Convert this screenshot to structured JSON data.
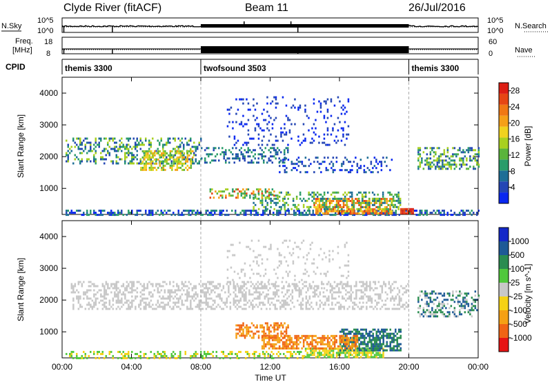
{
  "header": {
    "station": "Clyde River (fitACF)",
    "beam": "Beam 11",
    "date": "26/Jul/2016"
  },
  "nsky_panel": {
    "label": "N.Sky",
    "right_label": "N.Search",
    "left_ticks": [
      "10^5",
      "10^0"
    ],
    "right_ticks": [
      "10^5",
      "10^0"
    ]
  },
  "freq_panel": {
    "label_line1": "Freq.",
    "label_line2": "[MHz]",
    "right_label": "Nave",
    "left_ticks": [
      "18",
      "8"
    ],
    "right_ticks": [
      "60",
      "0"
    ]
  },
  "cpid": {
    "label": "CPID",
    "segments": [
      {
        "name": "themis 3300",
        "start_hour": 0,
        "end_hour": 8
      },
      {
        "name": "twofsound 3503",
        "start_hour": 8,
        "end_hour": 20
      },
      {
        "name": "themis 3300",
        "start_hour": 20,
        "end_hour": 24
      }
    ]
  },
  "colors": {
    "power": [
      "#0a28f0",
      "#2446b4",
      "#1e6e96",
      "#2a9c6a",
      "#5ab43c",
      "#a8d020",
      "#f0d21e",
      "#f5a018",
      "#f07814",
      "#e64614",
      "#dc1e14"
    ],
    "velocity": [
      "#1428c8",
      "#1e5a96",
      "#2a8c50",
      "#50c83c",
      "#c8c8c8",
      "#f5d214",
      "#f5a014",
      "#f06414",
      "#e61414"
    ]
  },
  "chart_data": [
    {
      "type": "heatmap",
      "name": "power",
      "ylabel": "Slant Range [km]",
      "x_range_hours": [
        0,
        24
      ],
      "ylim": [
        180,
        4500
      ],
      "yticks": [
        1000,
        2000,
        3000,
        4000
      ],
      "colorbar_label": "Power [dB]",
      "colorbar_ticks": [
        "4",
        "8",
        "12",
        "16",
        "20",
        "24",
        "28"
      ],
      "colorbar_range": [
        0,
        30
      ]
    },
    {
      "type": "heatmap",
      "name": "velocity",
      "ylabel": "Slant Range [km]",
      "x_range_hours": [
        0,
        24
      ],
      "ylim": [
        180,
        4500
      ],
      "yticks": [
        1000,
        2000,
        3000,
        4000
      ],
      "colorbar_label": "Velocity [m s^-1]",
      "colorbar_ticks": [
        "1000",
        "500",
        "100",
        "25",
        "-25",
        "-100",
        "-500",
        "-1000"
      ]
    }
  ],
  "xaxis": {
    "label": "Time UT",
    "ticks": [
      {
        "hour": 0,
        "label": "00:00"
      },
      {
        "hour": 4,
        "label": "04:00"
      },
      {
        "hour": 8,
        "label": "08:00"
      },
      {
        "hour": 12,
        "label": "12:00"
      },
      {
        "hour": 16,
        "label": "16:00"
      },
      {
        "hour": 20,
        "label": "20:00"
      },
      {
        "hour": 24,
        "label": "00:00"
      }
    ],
    "dashed_lines_hours": [
      8,
      20
    ]
  },
  "scatter_regions": {
    "power": [
      {
        "t": [
          0.2,
          24
        ],
        "r": [
          180,
          330
        ],
        "p": 0.55,
        "c": [
          0,
          1,
          2,
          3
        ]
      },
      {
        "t": [
          14.5,
          19
        ],
        "r": [
          200,
          700
        ],
        "p": 0.7,
        "c": [
          6,
          7,
          8,
          9
        ]
      },
      {
        "t": [
          19.5,
          20.2
        ],
        "r": [
          200,
          380
        ],
        "p": 0.9,
        "c": [
          9,
          10
        ]
      },
      {
        "t": [
          11,
          19.5
        ],
        "r": [
          350,
          900
        ],
        "p": 0.35,
        "c": [
          2,
          3,
          4,
          5
        ]
      },
      {
        "t": [
          8.5,
          12.5
        ],
        "r": [
          700,
          1000
        ],
        "p": 0.4,
        "c": [
          3,
          4,
          5,
          7,
          9
        ]
      },
      {
        "t": [
          0.2,
          8
        ],
        "r": [
          1800,
          2600
        ],
        "p": 0.35,
        "c": [
          1,
          2,
          3,
          5
        ]
      },
      {
        "t": [
          4.5,
          7.5
        ],
        "r": [
          1600,
          2200
        ],
        "p": 0.55,
        "c": [
          4,
          5,
          6,
          7
        ]
      },
      {
        "t": [
          8,
          13
        ],
        "r": [
          1800,
          2300
        ],
        "p": 0.35,
        "c": [
          1,
          2,
          3
        ]
      },
      {
        "t": [
          12.5,
          19
        ],
        "r": [
          1500,
          2000
        ],
        "p": 0.25,
        "c": [
          0,
          1,
          2
        ]
      },
      {
        "t": [
          9.5,
          16.5
        ],
        "r": [
          2400,
          3900
        ],
        "p": 0.12,
        "c": [
          0,
          1
        ]
      },
      {
        "t": [
          20.5,
          24
        ],
        "r": [
          1600,
          2300
        ],
        "p": 0.45,
        "c": [
          1,
          2,
          3,
          4,
          5
        ]
      }
    ],
    "velocity": [
      {
        "t": [
          0.2,
          14
        ],
        "r": [
          180,
          400
        ],
        "p": 0.35,
        "c": [
          3,
          5
        ]
      },
      {
        "t": [
          14,
          18.5
        ],
        "r": [
          180,
          500
        ],
        "p": 0.75,
        "c": [
          3,
          5
        ]
      },
      {
        "t": [
          16,
          19.5
        ],
        "r": [
          400,
          1100
        ],
        "p": 0.65,
        "c": [
          1,
          2
        ]
      },
      {
        "t": [
          11.5,
          17
        ],
        "r": [
          500,
          900
        ],
        "p": 0.6,
        "c": [
          6,
          7
        ]
      },
      {
        "t": [
          10,
          13
        ],
        "r": [
          800,
          1300
        ],
        "p": 0.5,
        "c": [
          6,
          7
        ]
      },
      {
        "t": [
          0.5,
          20
        ],
        "r": [
          1700,
          2600
        ],
        "p": 0.4,
        "c": [
          4
        ]
      },
      {
        "t": [
          9.5,
          16.5
        ],
        "r": [
          2400,
          3900
        ],
        "p": 0.12,
        "c": [
          4
        ]
      },
      {
        "t": [
          20.5,
          24
        ],
        "r": [
          1500,
          2300
        ],
        "p": 0.4,
        "c": [
          4,
          2,
          1
        ]
      }
    ]
  }
}
